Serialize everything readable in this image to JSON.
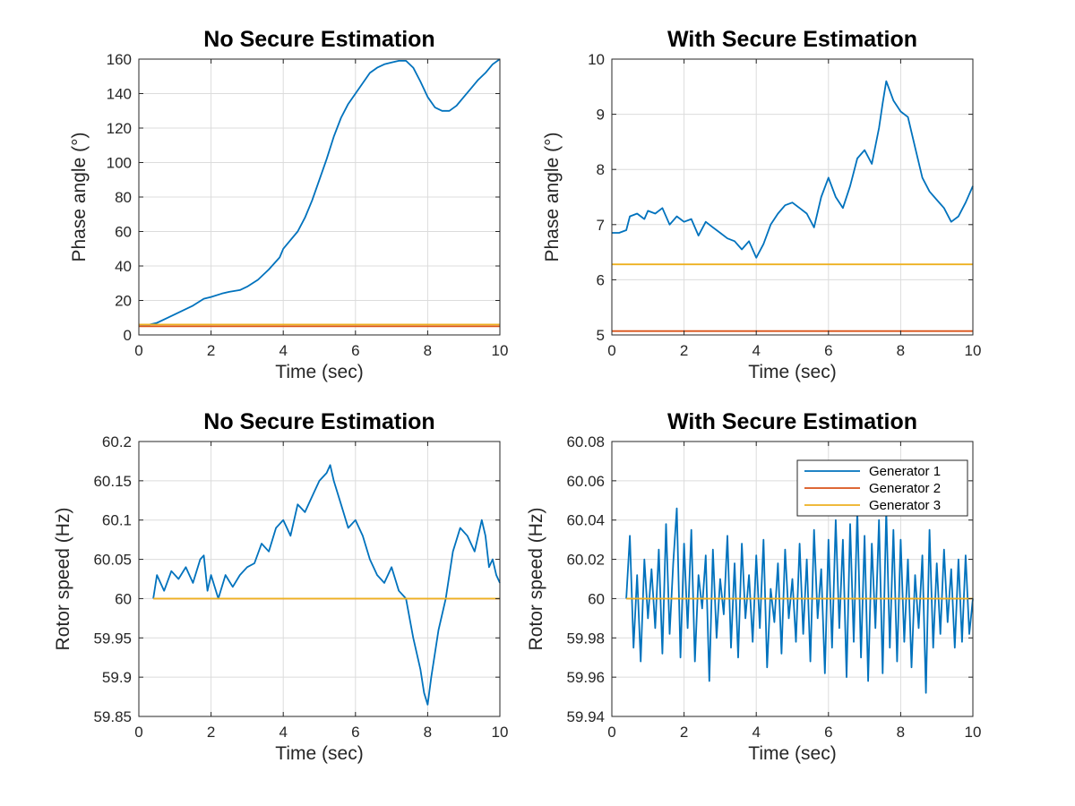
{
  "colors": {
    "generator_1": "#0072BD",
    "generator_2": "#D95319",
    "generator_3": "#EDB120"
  },
  "chart_data": [
    {
      "type": "line",
      "title": "No Secure Estimation",
      "xlabel": "Time (sec)",
      "ylabel": "Phase angle (°)",
      "xlim": [
        0,
        10
      ],
      "ylim": [
        0,
        160
      ],
      "xticks": [
        0,
        2,
        4,
        6,
        8,
        10
      ],
      "yticks": [
        0,
        20,
        40,
        60,
        80,
        100,
        120,
        140,
        160
      ],
      "grid": true,
      "series": [
        {
          "name": "Generator 1",
          "x": [
            0,
            0.3,
            0.5,
            0.8,
            1.0,
            1.5,
            1.8,
            2.0,
            2.3,
            2.5,
            2.8,
            3.0,
            3.3,
            3.6,
            3.9,
            4.0,
            4.2,
            4.4,
            4.6,
            4.8,
            5.0,
            5.2,
            5.4,
            5.6,
            5.8,
            6.0,
            6.2,
            6.4,
            6.6,
            6.8,
            7.0,
            7.2,
            7.4,
            7.6,
            7.8,
            8.0,
            8.2,
            8.4,
            8.6,
            8.8,
            9.0,
            9.2,
            9.4,
            9.6,
            9.8,
            10.0
          ],
          "y": [
            6,
            6,
            7,
            10,
            12,
            17,
            21,
            22,
            24,
            25,
            26,
            28,
            32,
            38,
            45,
            50,
            55,
            60,
            68,
            78,
            90,
            102,
            115,
            126,
            134,
            140,
            146,
            152,
            155,
            157,
            158,
            159,
            159,
            155,
            147,
            138,
            132,
            130,
            130,
            133,
            138,
            143,
            148,
            152,
            157,
            160
          ]
        },
        {
          "name": "Generator 2",
          "x": [
            0,
            10
          ],
          "y": [
            5,
            5
          ]
        },
        {
          "name": "Generator 3",
          "x": [
            0,
            10
          ],
          "y": [
            6,
            6
          ]
        }
      ]
    },
    {
      "type": "line",
      "title": "With Secure Estimation",
      "xlabel": "Time (sec)",
      "ylabel": "Phase angle (°)",
      "xlim": [
        0,
        10
      ],
      "ylim": [
        5,
        10
      ],
      "xticks": [
        0,
        2,
        4,
        6,
        8,
        10
      ],
      "yticks": [
        5,
        6,
        7,
        8,
        9,
        10
      ],
      "grid": true,
      "series": [
        {
          "name": "Generator 1",
          "x": [
            0,
            0.2,
            0.4,
            0.5,
            0.7,
            0.9,
            1.0,
            1.2,
            1.4,
            1.6,
            1.8,
            2.0,
            2.2,
            2.4,
            2.6,
            2.8,
            3.0,
            3.2,
            3.4,
            3.6,
            3.8,
            4.0,
            4.2,
            4.4,
            4.6,
            4.8,
            5.0,
            5.2,
            5.4,
            5.6,
            5.8,
            6.0,
            6.2,
            6.4,
            6.6,
            6.8,
            7.0,
            7.2,
            7.4,
            7.5,
            7.6,
            7.8,
            8.0,
            8.2,
            8.4,
            8.6,
            8.8,
            9.0,
            9.2,
            9.4,
            9.6,
            9.8,
            10.0
          ],
          "y": [
            6.85,
            6.85,
            6.9,
            7.15,
            7.2,
            7.1,
            7.25,
            7.2,
            7.3,
            7.0,
            7.15,
            7.05,
            7.1,
            6.8,
            7.05,
            6.95,
            6.85,
            6.75,
            6.7,
            6.55,
            6.7,
            6.4,
            6.65,
            7.0,
            7.2,
            7.35,
            7.4,
            7.3,
            7.2,
            6.95,
            7.5,
            7.85,
            7.5,
            7.3,
            7.7,
            8.2,
            8.35,
            8.1,
            8.75,
            9.2,
            9.6,
            9.25,
            9.05,
            8.95,
            8.4,
            7.85,
            7.6,
            7.45,
            7.3,
            7.05,
            7.15,
            7.4,
            7.7
          ]
        },
        {
          "name": "Generator 2",
          "x": [
            0,
            10
          ],
          "y": [
            5.07,
            5.07
          ]
        },
        {
          "name": "Generator 3",
          "x": [
            0,
            10
          ],
          "y": [
            6.28,
            6.28
          ]
        }
      ]
    },
    {
      "type": "line",
      "title": "No Secure Estimation",
      "xlabel": "Time (sec)",
      "ylabel": "Rotor speed (Hz)",
      "xlim": [
        0,
        10
      ],
      "ylim": [
        59.85,
        60.2
      ],
      "xticks": [
        0,
        2,
        4,
        6,
        8,
        10
      ],
      "yticks": [
        59.85,
        59.9,
        59.95,
        60,
        60.05,
        60.1,
        60.15,
        60.2
      ],
      "ytick_labels": [
        "59.85",
        "59.9",
        "59.95",
        "60",
        "60.05",
        "60.1",
        "60.15",
        "60.2"
      ],
      "grid": true,
      "series": [
        {
          "name": "Generator 1",
          "x": [
            0.4,
            0.5,
            0.7,
            0.9,
            1.1,
            1.3,
            1.5,
            1.7,
            1.8,
            1.9,
            2.0,
            2.2,
            2.4,
            2.6,
            2.8,
            3.0,
            3.2,
            3.4,
            3.6,
            3.8,
            4.0,
            4.2,
            4.4,
            4.6,
            4.8,
            5.0,
            5.2,
            5.3,
            5.4,
            5.6,
            5.8,
            6.0,
            6.2,
            6.4,
            6.6,
            6.8,
            7.0,
            7.2,
            7.4,
            7.6,
            7.8,
            7.9,
            8.0,
            8.1,
            8.3,
            8.5,
            8.7,
            8.9,
            9.1,
            9.3,
            9.5,
            9.6,
            9.7,
            9.8,
            9.9,
            10.0
          ],
          "y": [
            60.0,
            60.03,
            60.01,
            60.035,
            60.025,
            60.04,
            60.02,
            60.05,
            60.055,
            60.01,
            60.03,
            60.0,
            60.03,
            60.015,
            60.03,
            60.04,
            60.045,
            60.07,
            60.06,
            60.09,
            60.1,
            60.08,
            60.12,
            60.11,
            60.13,
            60.15,
            60.16,
            60.17,
            60.15,
            60.12,
            60.09,
            60.1,
            60.08,
            60.05,
            60.03,
            60.02,
            60.04,
            60.01,
            60.0,
            59.95,
            59.91,
            59.88,
            59.865,
            59.9,
            59.96,
            60.0,
            60.06,
            60.09,
            60.08,
            60.06,
            60.1,
            60.08,
            60.04,
            60.05,
            60.03,
            60.02
          ]
        },
        {
          "name": "Generator 2",
          "x": [
            0.4,
            10
          ],
          "y": [
            60,
            60
          ]
        },
        {
          "name": "Generator 3",
          "x": [
            0.4,
            10
          ],
          "y": [
            60,
            60
          ]
        }
      ]
    },
    {
      "type": "line",
      "title": "With Secure Estimation",
      "xlabel": "Time (sec)",
      "ylabel": "Rotor speed (Hz)",
      "xlim": [
        0,
        10
      ],
      "ylim": [
        59.94,
        60.08
      ],
      "xticks": [
        0,
        2,
        4,
        6,
        8,
        10
      ],
      "yticks": [
        59.94,
        59.96,
        59.98,
        60,
        60.02,
        60.04,
        60.06,
        60.08
      ],
      "ytick_labels": [
        "59.94",
        "59.96",
        "59.98",
        "60",
        "60.02",
        "60.04",
        "60.06",
        "60.08"
      ],
      "grid": true,
      "legend": {
        "position": "top-right",
        "entries": [
          "Generator 1",
          "Generator 2",
          "Generator 3"
        ]
      },
      "series": [
        {
          "name": "Generator 1",
          "x": [
            0.4,
            0.5,
            0.6,
            0.7,
            0.8,
            0.9,
            1.0,
            1.1,
            1.2,
            1.3,
            1.4,
            1.5,
            1.6,
            1.7,
            1.8,
            1.9,
            2.0,
            2.1,
            2.2,
            2.3,
            2.4,
            2.5,
            2.6,
            2.7,
            2.8,
            2.9,
            3.0,
            3.1,
            3.2,
            3.3,
            3.4,
            3.5,
            3.6,
            3.7,
            3.8,
            3.9,
            4.0,
            4.1,
            4.2,
            4.3,
            4.4,
            4.5,
            4.6,
            4.7,
            4.8,
            4.9,
            5.0,
            5.1,
            5.2,
            5.3,
            5.4,
            5.5,
            5.6,
            5.7,
            5.8,
            5.9,
            6.0,
            6.1,
            6.2,
            6.3,
            6.4,
            6.5,
            6.6,
            6.7,
            6.8,
            6.9,
            7.0,
            7.1,
            7.2,
            7.3,
            7.4,
            7.5,
            7.6,
            7.7,
            7.8,
            7.9,
            8.0,
            8.1,
            8.2,
            8.3,
            8.4,
            8.5,
            8.6,
            8.7,
            8.8,
            8.9,
            9.0,
            9.1,
            9.2,
            9.3,
            9.4,
            9.5,
            9.6,
            9.7,
            9.8,
            9.9,
            10.0
          ],
          "y": [
            60.0,
            60.032,
            59.975,
            60.012,
            59.968,
            60.02,
            59.99,
            60.015,
            59.985,
            60.025,
            59.972,
            60.038,
            59.982,
            60.018,
            60.046,
            59.97,
            60.028,
            59.985,
            60.035,
            59.968,
            60.012,
            59.995,
            60.022,
            59.958,
            60.025,
            59.98,
            60.01,
            59.992,
            60.032,
            59.975,
            60.018,
            59.97,
            60.028,
            59.99,
            60.012,
            59.978,
            60.022,
            59.985,
            60.03,
            59.965,
            60.005,
            59.988,
            60.018,
            59.972,
            60.025,
            59.99,
            60.01,
            59.978,
            60.028,
            59.982,
            60.02,
            59.968,
            60.035,
            59.99,
            60.015,
            59.962,
            60.03,
            59.975,
            60.04,
            59.985,
            60.03,
            59.96,
            60.038,
            59.978,
            60.045,
            59.97,
            60.032,
            59.958,
            60.028,
            59.985,
            60.04,
            59.962,
            60.045,
            59.975,
            60.035,
            59.968,
            60.03,
            59.978,
            60.02,
            59.965,
            60.012,
            59.985,
            60.022,
            59.952,
            60.035,
            59.975,
            60.018,
            59.982,
            60.025,
            59.988,
            60.015,
            59.975,
            60.02,
            59.978,
            60.022,
            59.982,
            60.0
          ]
        },
        {
          "name": "Generator 2",
          "x": [
            0.4,
            10
          ],
          "y": [
            60,
            60
          ]
        },
        {
          "name": "Generator 3",
          "x": [
            0.4,
            10
          ],
          "y": [
            60,
            60
          ]
        }
      ]
    }
  ]
}
